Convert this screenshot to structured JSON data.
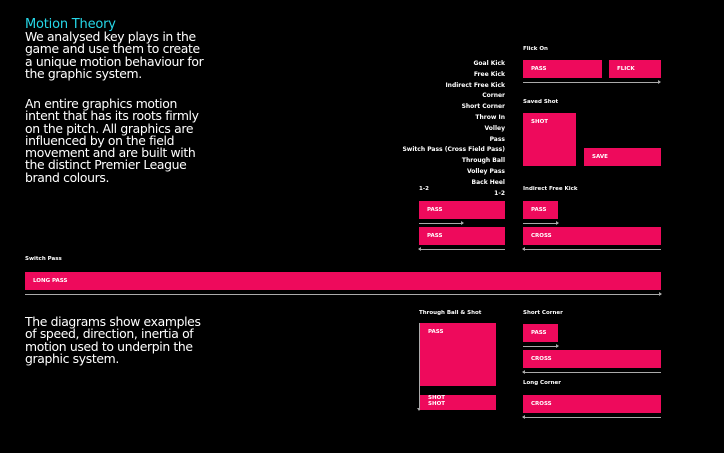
{
  "intro": {
    "heading": "Motion Theory",
    "paragraph_1": "We analysed key plays in the\ngame and use them to create\na unique motion behaviour for\nthe graphic system.",
    "paragraph_2": "An entire graphics motion\nintent that has its roots firmly\non the pitch.  All graphics are\ninfluenced by on the field\nmovement and are built with\nthe distinct Premier League\nbrand colours.",
    "paragraph_3": "The diagrams show examples\nof speed, direction, inertia of\nmotion used to underpin the\ngraphic system."
  },
  "key_plays": [
    "Goal Kick",
    "Free Kick",
    "Indirect Free Kick",
    "Corner",
    "Short Corner",
    "Throw In",
    "Volley",
    "Pass",
    "Switch Pass (Cross Field Pass)",
    "Through Ball",
    "Volley Pass",
    "Back Heel",
    "1-2"
  ],
  "diagrams": {
    "flick_on": {
      "title": "Flick On",
      "pass": "PASS",
      "flick": "FLICK"
    },
    "saved_shot": {
      "title": "Saved Shot",
      "shot": "SHOT",
      "save": "SAVE"
    },
    "one_two": {
      "title": "1-2",
      "pass_1": "PASS",
      "pass_2": "PASS"
    },
    "indirect_free_kick": {
      "title": "Indirect Free Kick",
      "pass": "PASS",
      "cross": "CROSS"
    },
    "switch_pass": {
      "title": "Switch Pass",
      "long_pass": "LONG PASS"
    },
    "through_ball_shot": {
      "title": "Through Ball & Shot",
      "pass": "PASS",
      "shot": "SHOT\nSHOT"
    },
    "short_corner": {
      "title": "Short Corner",
      "pass": "PASS",
      "cross": "CROSS"
    },
    "long_corner": {
      "title": "Long Corner",
      "cross": "CROSS"
    }
  },
  "colors": {
    "background": "#000000",
    "accent_pink": "#ee0a5c",
    "heading_cyan": "#26d7e8",
    "text": "#ffffff",
    "arrow": "#aaaaaa"
  }
}
